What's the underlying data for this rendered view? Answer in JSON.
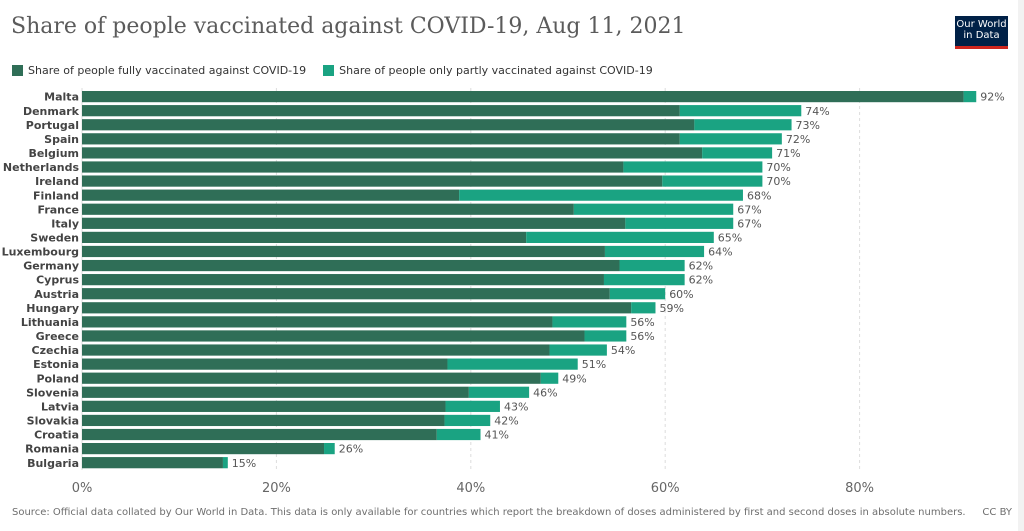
{
  "header": {
    "title": "Share of people vaccinated against COVID-19, Aug 11, 2021",
    "logo_line1": "Our World",
    "logo_line2": "in Data"
  },
  "colors": {
    "fully": "#2f6e57",
    "partly": "#1aa382",
    "grid": "#dddddd",
    "text": "#444444",
    "logo_bg": "#002147",
    "logo_accent": "#ce261e"
  },
  "legend": {
    "fully_label": "Share of people fully vaccinated against COVID-19",
    "partly_label": "Share of people only partly vaccinated against COVID-19"
  },
  "footer": {
    "source": "Source: Official data collated by Our World in Data. This data is only available for countries which report the breakdown of doses administered by first and second doses in absolute numbers.",
    "license": "CC BY"
  },
  "chart_data": {
    "type": "bar",
    "orientation": "horizontal",
    "stacked": true,
    "title": "Share of people vaccinated against COVID-19, Aug 11, 2021",
    "xlim": [
      0,
      95
    ],
    "xticks": [
      0,
      20,
      40,
      60,
      80
    ],
    "xtick_labels": [
      "0%",
      "20%",
      "40%",
      "60%",
      "80%"
    ],
    "grid": true,
    "legend_position": "top-left",
    "categories": [
      "Malta",
      "Denmark",
      "Portugal",
      "Spain",
      "Belgium",
      "Netherlands",
      "Ireland",
      "Finland",
      "France",
      "Italy",
      "Sweden",
      "Luxembourg",
      "Germany",
      "Cyprus",
      "Austria",
      "Hungary",
      "Lithuania",
      "Greece",
      "Czechia",
      "Estonia",
      "Poland",
      "Slovenia",
      "Latvia",
      "Slovakia",
      "Croatia",
      "Romania",
      "Bulgaria"
    ],
    "series": [
      {
        "name": "Share of people fully vaccinated against COVID-19",
        "values": [
          90.7,
          61.5,
          63.0,
          61.5,
          63.8,
          55.7,
          59.7,
          38.8,
          50.6,
          55.9,
          45.7,
          53.8,
          55.3,
          53.7,
          54.3,
          56.5,
          48.4,
          51.7,
          48.1,
          37.6,
          47.2,
          39.8,
          37.4,
          37.3,
          36.5,
          24.9,
          14.5
        ]
      },
      {
        "name": "Share of people only partly vaccinated against COVID-19",
        "values": [
          1.3,
          12.5,
          10.0,
          10.5,
          7.2,
          14.3,
          10.3,
          29.2,
          16.4,
          11.1,
          19.3,
          10.2,
          6.7,
          8.3,
          5.7,
          2.5,
          7.6,
          4.3,
          5.9,
          13.4,
          1.8,
          6.2,
          5.6,
          4.7,
          4.5,
          1.1,
          0.5
        ]
      }
    ],
    "totals_labels": [
      "92%",
      "74%",
      "73%",
      "72%",
      "71%",
      "70%",
      "70%",
      "68%",
      "67%",
      "67%",
      "65%",
      "64%",
      "62%",
      "62%",
      "60%",
      "59%",
      "56%",
      "56%",
      "54%",
      "51%",
      "49%",
      "46%",
      "43%",
      "42%",
      "41%",
      "26%",
      "15%"
    ]
  }
}
